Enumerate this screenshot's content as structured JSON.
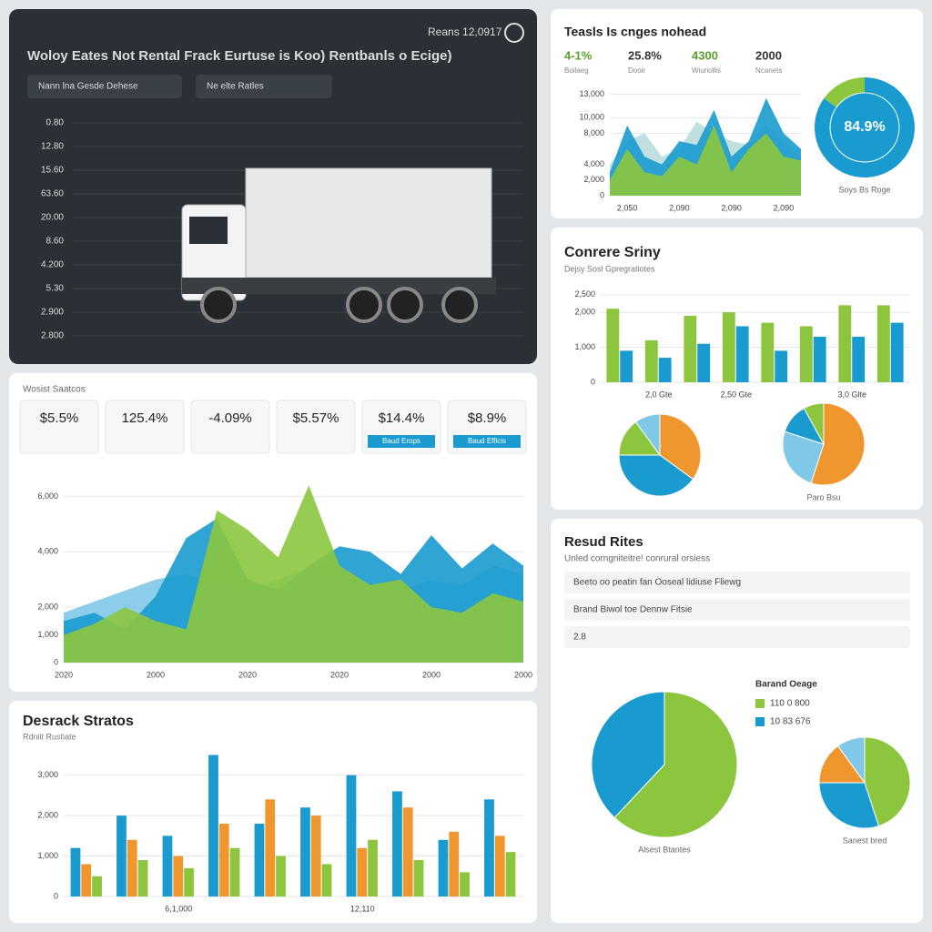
{
  "header": {
    "title": "Woloy Eates Not Rental Frack Eurtuse is Koo) Rentbanls o Ecige)",
    "date": "Reans 12,0917",
    "buttons": [
      "Nann lna Gesde Dehese",
      "Ne elte Ratles"
    ],
    "axis_labels": [
      "0.80",
      "12.80",
      "15.60",
      "63.60",
      "20.00",
      "8.60",
      "4.200",
      "5.30",
      "2.900",
      "2.800"
    ]
  },
  "top_stats": [
    {
      "value": "4-1%",
      "label": "Boilaeg"
    },
    {
      "value": "25.8%",
      "label": "Dooir"
    },
    {
      "value": "4300",
      "label": "Wiuriollis"
    },
    {
      "value": "2000",
      "label": "Ncanets"
    }
  ],
  "kpis": {
    "heading": "Wosist Saatcos",
    "cards": [
      "$5.5%",
      "125.4%",
      "-4.09%",
      "$5.57%",
      "$14.4%",
      "$8.9%"
    ],
    "buttons": [
      "Baud Erops",
      "Baud Efficis"
    ]
  },
  "side": {
    "title": "Resud Rites",
    "subtitle": "Unled corngniteitre! conrural orsiess",
    "items": [
      "Beeto oo peatin fan Ooseal lidiuse Fliewg",
      "Brand Biwol toe Dennw Fitsie",
      "2.8"
    ]
  },
  "legend": {
    "title": "Barand Oeage",
    "items": [
      "110 0 800",
      "10 83 676"
    ]
  },
  "chart_data": [
    {
      "type": "area",
      "title": "Teasls Is cnges nohead",
      "categories": [
        null,
        "2,050",
        null,
        null,
        "2,090",
        null,
        null,
        "2,090",
        null,
        null,
        "2,090",
        null
      ],
      "series": [
        {
          "color": "#b9dcdc",
          "values": [
            4000,
            7000,
            8000,
            5000,
            6000,
            9500,
            8000,
            7000,
            6500,
            9000,
            7000,
            5000
          ]
        },
        {
          "color": "#1a9bcf",
          "values": [
            3000,
            9000,
            5000,
            4000,
            7000,
            6500,
            11000,
            5000,
            7000,
            12500,
            8000,
            6000
          ]
        },
        {
          "color": "#8cc63f",
          "values": [
            2000,
            6000,
            3000,
            2500,
            5000,
            4000,
            9000,
            3000,
            6000,
            8000,
            5000,
            4500
          ]
        }
      ],
      "ylim": [
        0,
        14000
      ],
      "yticks": [
        0,
        {
          "value": 2000,
          "label": "2,000"
        },
        {
          "value": 4000,
          "label": "4,000"
        },
        {
          "value": 8000,
          "label": "8,000"
        },
        {
          "value": 10000,
          "label": "10,000"
        },
        {
          "value": 13000,
          "label": "13,000"
        }
      ],
      "grid": true
    },
    {
      "type": "donut",
      "values": [
        84.9,
        15.1
      ],
      "value_labels": [
        "84.9%",
        null
      ],
      "colors": [
        "#1a9bcf",
        "#8cc63f"
      ],
      "caption": "Soys Bs Roge"
    },
    {
      "type": "bar",
      "title": "Conrere Sriny",
      "subtitle": "Dejsy Sosl Gpregratiotes",
      "categories": [
        null,
        "2,0 Gte",
        null,
        "2,50 Gte",
        null,
        null,
        "3,0 Glte",
        null
      ],
      "series": [
        {
          "color": "#8cc63f",
          "values": [
            2100,
            1200,
            1900,
            2000,
            1700,
            1600,
            2200,
            2200
          ]
        },
        {
          "color": "#1a9bcf",
          "values": [
            900,
            700,
            1100,
            1600,
            900,
            1300,
            1300,
            1700
          ]
        }
      ],
      "ylim": [
        0,
        2600
      ],
      "yticks": [
        0,
        {
          "value": 1000,
          "label": "1,000"
        },
        {
          "value": 2000,
          "label": "2,000"
        },
        {
          "value": 2500,
          "label": "2,500"
        }
      ],
      "grid": true
    },
    {
      "type": "pie",
      "values": [
        35,
        40,
        15,
        10
      ],
      "colors": [
        "#f0962e",
        "#1a9bcf",
        "#8cc63f",
        "#7fc8e8"
      ]
    },
    {
      "type": "pie",
      "values": [
        55,
        25,
        12,
        8
      ],
      "colors": [
        "#f0962e",
        "#7fc8e8",
        "#1a9bcf",
        "#8cc63f"
      ],
      "caption": "Paro Bsu"
    },
    {
      "type": "area",
      "categories": [
        "2020",
        null,
        null,
        "2000",
        null,
        null,
        "2020",
        null,
        null,
        "2020",
        null,
        null,
        "2000",
        null,
        null,
        "2000"
      ],
      "series": [
        {
          "color": "#7fc8e8",
          "values": [
            1800,
            2200,
            2600,
            3000,
            3200,
            2800,
            2500,
            3000,
            3400,
            3000,
            2500,
            2600,
            3000,
            2800,
            3500,
            3200
          ]
        },
        {
          "color": "#1a9bcf",
          "values": [
            1500,
            1800,
            1200,
            2400,
            4500,
            5200,
            3000,
            2600,
            3500,
            4200,
            4000,
            3200,
            4600,
            3400,
            4300,
            3500
          ]
        },
        {
          "color": "#8cc63f",
          "values": [
            1000,
            1400,
            2000,
            1500,
            1200,
            5500,
            4800,
            3800,
            6400,
            3500,
            2800,
            3000,
            2000,
            1800,
            2500,
            2200
          ]
        }
      ],
      "ylim": [
        0,
        7000
      ],
      "yticks": [
        0,
        {
          "value": 1000,
          "label": "1,000"
        },
        {
          "value": 2000,
          "label": "2,000"
        },
        {
          "value": 4000,
          "label": "4,000"
        },
        {
          "value": 6000,
          "label": "6,000"
        }
      ],
      "grid": true
    },
    {
      "type": "bar",
      "title": "Desrack Stratos",
      "subtitle": "Rdniit Rustiate",
      "categories": [
        null,
        null,
        "6,1,000",
        null,
        null,
        null,
        "12,110",
        null,
        null,
        null
      ],
      "series": [
        {
          "color": "#1a9bcf",
          "values": [
            1200,
            2000,
            1500,
            3500,
            1800,
            2200,
            3000,
            2600,
            1400,
            2400
          ]
        },
        {
          "color": "#f0962e",
          "values": [
            800,
            1400,
            1000,
            1800,
            2400,
            2000,
            1200,
            2200,
            1600,
            1500
          ]
        },
        {
          "color": "#8cc63f",
          "values": [
            500,
            900,
            700,
            1200,
            1000,
            800,
            1400,
            900,
            600,
            1100
          ]
        }
      ],
      "ylim": [
        0,
        3600
      ],
      "yticks": [
        0,
        {
          "value": 1000,
          "label": "1,000"
        },
        {
          "value": 2000,
          "label": "2,000"
        },
        {
          "value": 3000,
          "label": "3,000"
        }
      ],
      "grid": true
    },
    {
      "type": "pie",
      "values": [
        62,
        38
      ],
      "colors": [
        "#8cc63f",
        "#1a9bcf"
      ],
      "caption": "Alsest Btantes"
    },
    {
      "type": "pie",
      "values": [
        45,
        30,
        15,
        10
      ],
      "colors": [
        "#8cc63f",
        "#1a9bcf",
        "#f0962e",
        "#7fc8e8"
      ],
      "caption": "Sanest bred"
    }
  ]
}
